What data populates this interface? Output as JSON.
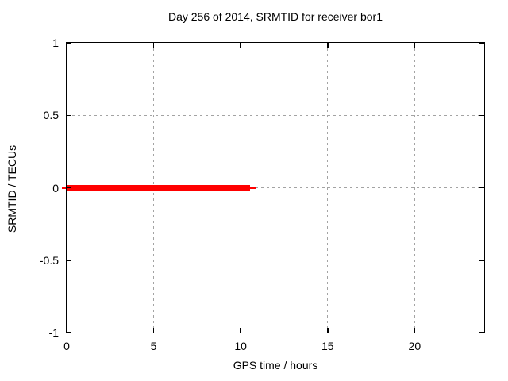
{
  "title": "Day 256 of 2014, SRMTID for receiver bor1",
  "x_axis": {
    "label": "GPS time / hours",
    "tick_labels": [
      "0",
      "5",
      "10",
      "15",
      "20"
    ]
  },
  "y_axis": {
    "label": "SRMTID / TECUs",
    "tick_labels": [
      "1",
      "0.5",
      "0",
      "-0.5",
      "-1"
    ]
  },
  "chart_data": {
    "type": "line",
    "title": "Day 256 of 2014, SRMTID for receiver bor1",
    "xlabel": "GPS time / hours",
    "ylabel": "SRMTID / TECUs",
    "xlim": [
      0,
      24
    ],
    "ylim": [
      -1,
      1
    ],
    "x_ticks": [
      0,
      5,
      10,
      15,
      20
    ],
    "y_ticks": [
      1,
      0.5,
      0,
      -0.5,
      -1
    ],
    "grid": true,
    "legend": false,
    "series": [
      {
        "name": "SRMTID",
        "color": "#ff0000",
        "x": [
          0,
          10.55
        ],
        "y": [
          0,
          0
        ],
        "style": "thick horizontal segment at y=0 with thin overhanging line ends"
      }
    ]
  },
  "colors": {
    "background": "#ffffff",
    "grid": "#a3a3a3",
    "border": "#000000",
    "text": "#000000",
    "series_red": "#ff0000"
  }
}
